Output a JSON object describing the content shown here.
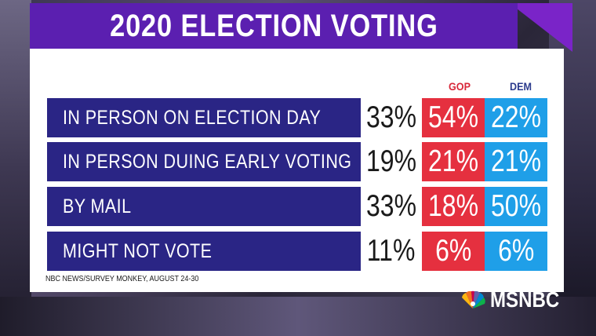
{
  "title": "2020 ELECTION VOTING",
  "headers": {
    "gop": "GOP",
    "dem": "DEM"
  },
  "colors": {
    "title_bg": "#5b1fb0",
    "label_bg": "#2a2585",
    "gop": "#e5303f",
    "dem": "#1f9fe8",
    "gop_header": "#d8283a",
    "dem_header": "#2a3a8c"
  },
  "rows": [
    {
      "label": "IN PERSON ON ELECTION DAY",
      "all": "33%",
      "gop": "54%",
      "dem": "22%"
    },
    {
      "label": "IN PERSON DUING EARLY VOTING",
      "all": "19%",
      "gop": "21%",
      "dem": "21%"
    },
    {
      "label": "BY MAIL",
      "all": "33%",
      "gop": "18%",
      "dem": "50%"
    },
    {
      "label": "MIGHT NOT VOTE",
      "all": "11%",
      "gop": "6%",
      "dem": "6%"
    }
  ],
  "source": "NBC NEWS/SURVEY MONKEY, AUGUST 24-30",
  "logo": {
    "text": "MSNBC",
    "icon": "nbc-peacock-icon"
  },
  "chart_data": {
    "type": "table",
    "title": "2020 ELECTION VOTING",
    "categories": [
      "IN PERSON ON ELECTION DAY",
      "IN PERSON DUING EARLY VOTING",
      "BY MAIL",
      "MIGHT NOT VOTE"
    ],
    "series": [
      {
        "values": [
          33,
          19,
          33,
          11
        ]
      },
      {
        "name": "GOP",
        "values": [
          54,
          21,
          18,
          6
        ]
      },
      {
        "name": "DEM",
        "values": [
          22,
          21,
          50,
          6
        ]
      }
    ],
    "unit": "%"
  }
}
